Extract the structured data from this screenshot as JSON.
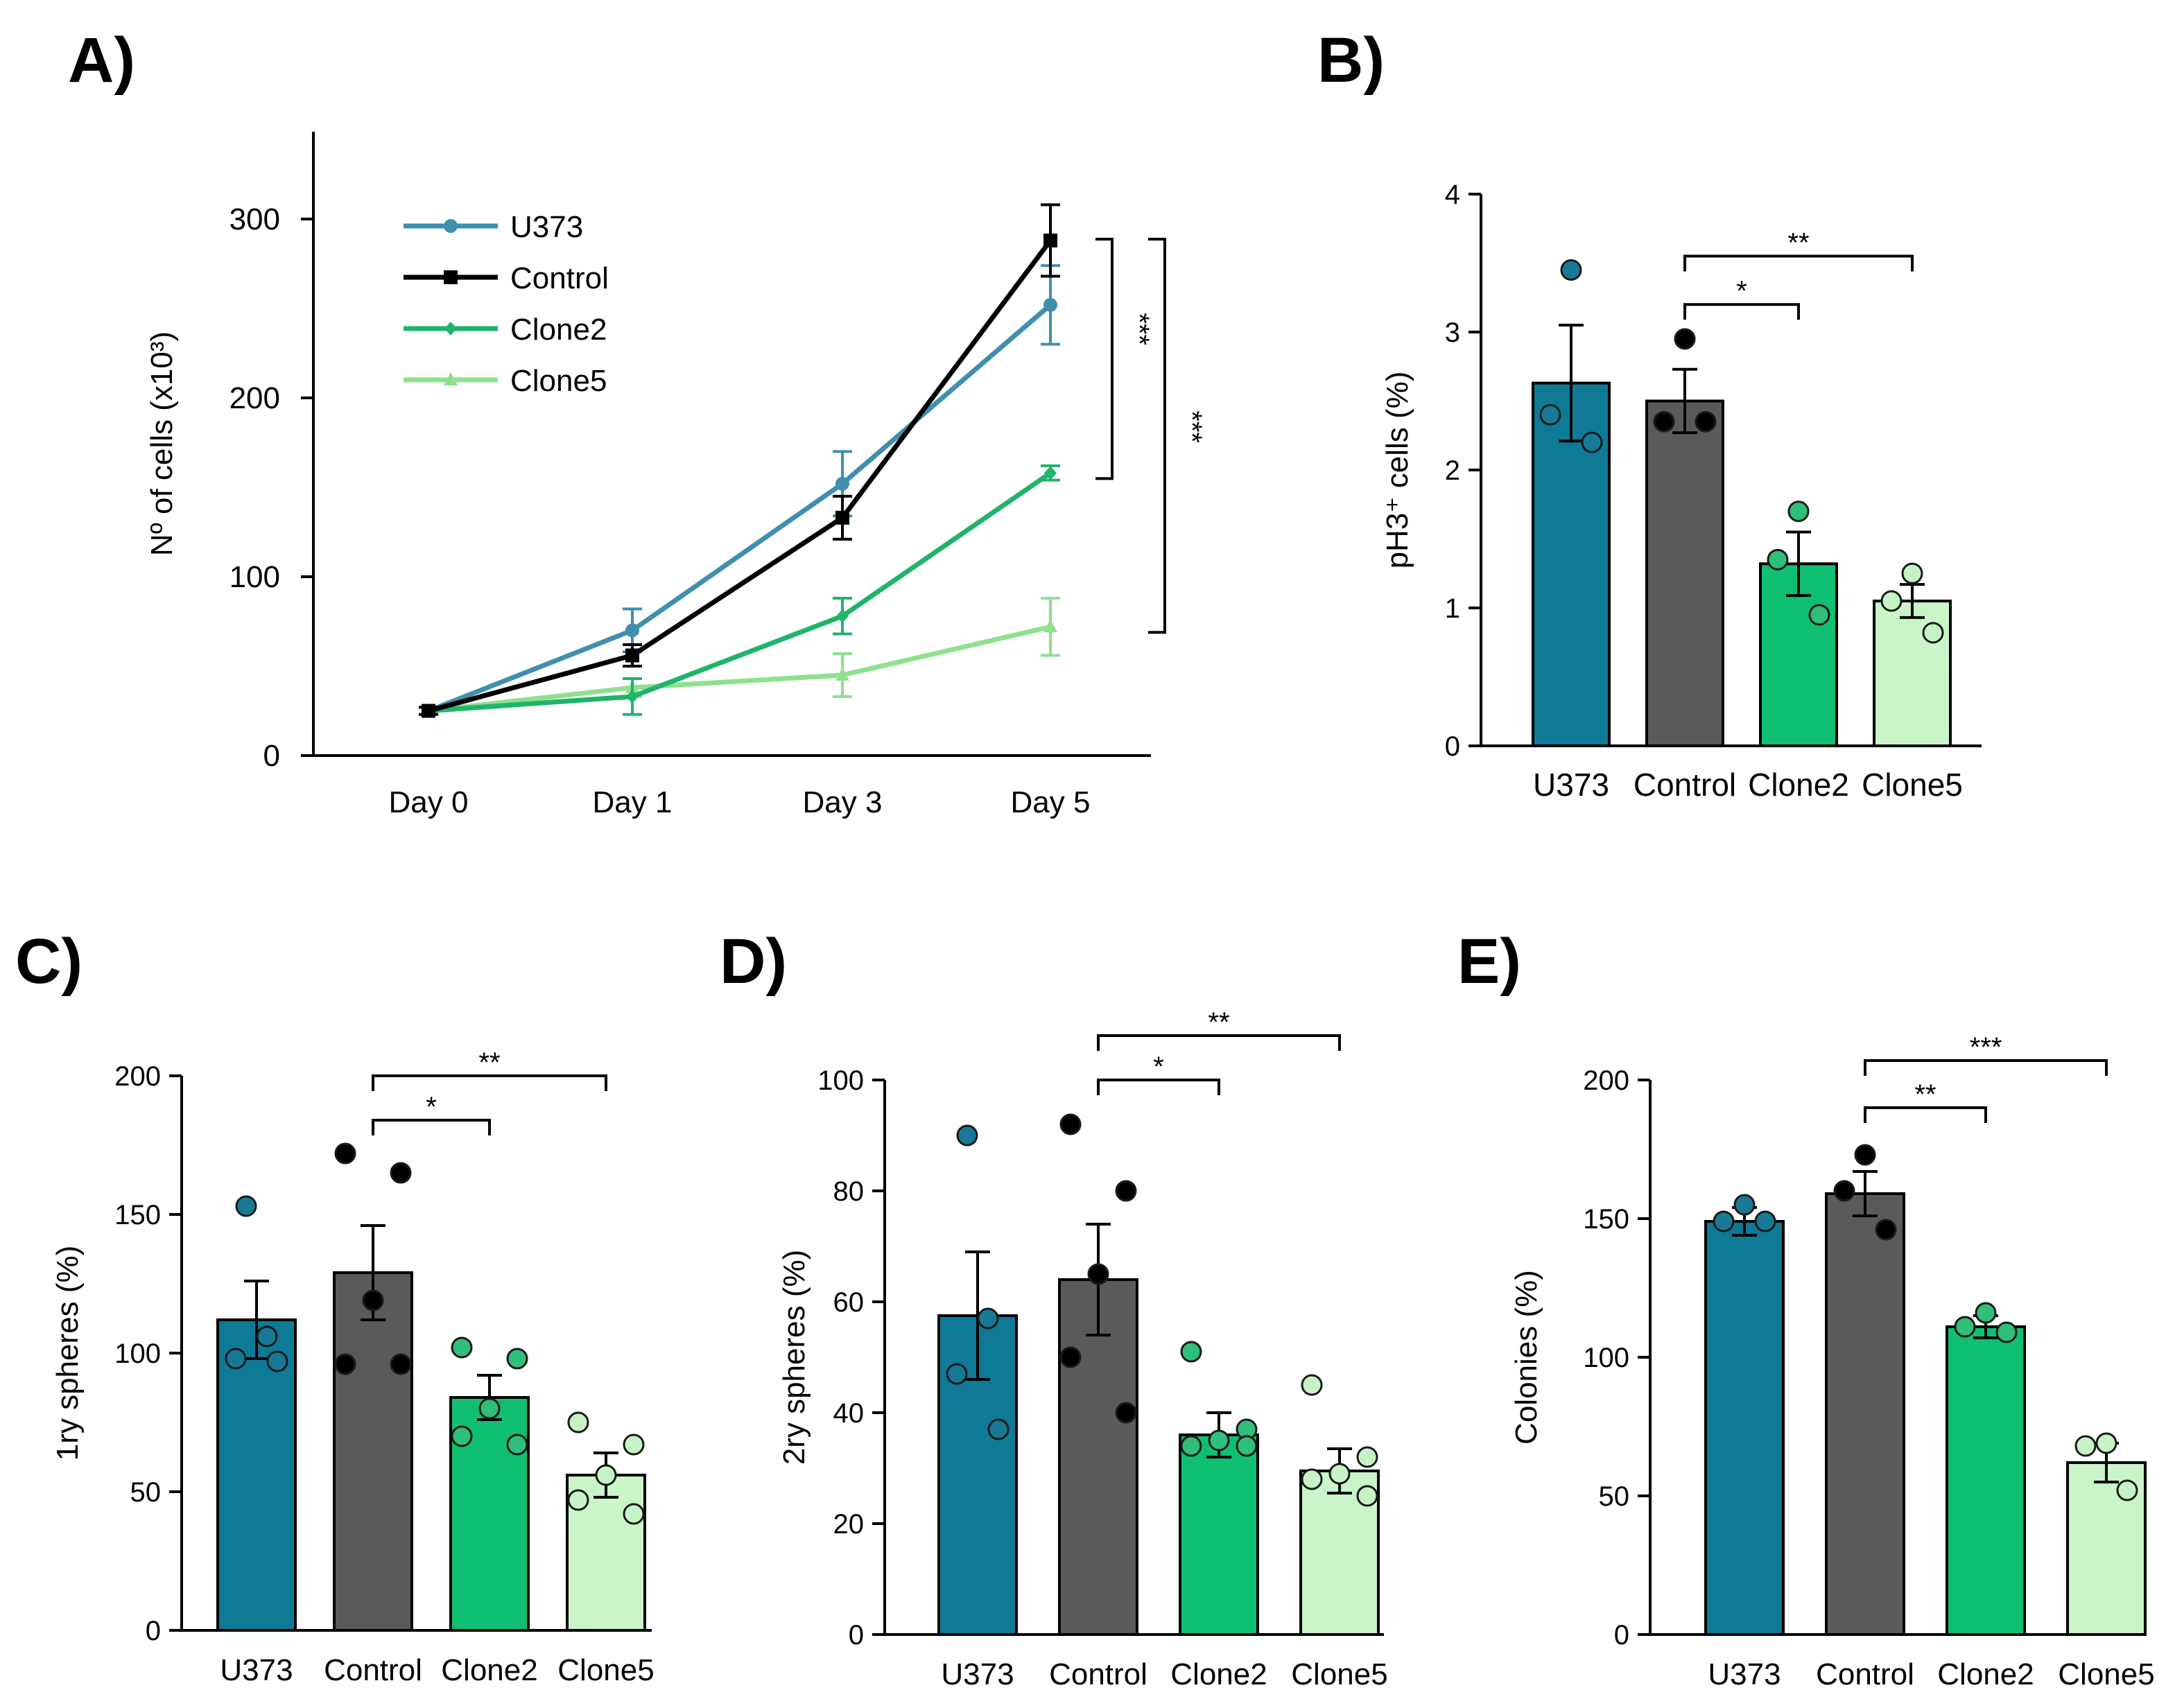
{
  "panel_labels": {
    "A": "A)",
    "B": "B)",
    "C": "C)",
    "D": "D)",
    "E": "E)"
  },
  "colors": {
    "U373": "#0e7a96",
    "Control": "#5a5a5a",
    "Clone2": "#0fbf72",
    "Clone5": "#c9f5c9",
    "U373_line": "#3f8fae",
    "Control_line": "#000000",
    "Clone2_line": "#1fb46a",
    "Clone5_line": "#8fe08f",
    "U373_dot": "#167a96",
    "Control_dot": "#000000",
    "Clone2_dot": "#2fbf7a",
    "Clone5_dot": "#c6f3c6"
  },
  "chart_data": [
    {
      "id": "A",
      "type": "line",
      "title": "",
      "xlabel": "",
      "ylabel": "Nº of cells (x10³)",
      "categories": [
        "Day 0",
        "Day 1",
        "Day 3",
        "Day 5"
      ],
      "ylim": [
        0,
        350
      ],
      "yticks": [
        0,
        100,
        200,
        300
      ],
      "series": [
        {
          "name": "U373",
          "values": [
            25,
            70,
            152,
            252
          ],
          "err": [
            2,
            12,
            18,
            22
          ]
        },
        {
          "name": "Control",
          "values": [
            25,
            56,
            133,
            288
          ],
          "err": [
            2,
            6,
            12,
            20
          ]
        },
        {
          "name": "Clone2",
          "values": [
            25,
            33,
            78,
            158
          ],
          "err": [
            2,
            10,
            10,
            4
          ]
        },
        {
          "name": "Clone5",
          "values": [
            25,
            38,
            45,
            72
          ],
          "err": [
            2,
            5,
            12,
            16
          ]
        }
      ],
      "significance": [
        {
          "label": "***",
          "from": "Control",
          "to": "Clone2"
        },
        {
          "label": "***",
          "from": "Control",
          "to": "Clone5"
        }
      ]
    },
    {
      "id": "B",
      "type": "bar",
      "ylabel": "pH3⁺ cells (%)",
      "categories": [
        "U373",
        "Control",
        "Clone2",
        "Clone5"
      ],
      "ylim": [
        0,
        4
      ],
      "yticks": [
        0,
        1,
        2,
        3,
        4
      ],
      "values": [
        2.63,
        2.5,
        1.32,
        1.05
      ],
      "err": [
        0.42,
        0.23,
        0.23,
        0.12
      ],
      "points": [
        [
          3.45,
          2.4,
          2.2
        ],
        [
          2.95,
          2.35,
          2.35
        ],
        [
          1.7,
          1.35,
          0.95
        ],
        [
          1.25,
          1.05,
          0.82
        ]
      ],
      "significance": [
        {
          "label": "*",
          "from": 1,
          "to": 2,
          "y": 3.2
        },
        {
          "label": "**",
          "from": 1,
          "to": 3,
          "y": 3.55
        }
      ]
    },
    {
      "id": "C",
      "type": "bar",
      "ylabel": "1ry spheres (%)",
      "categories": [
        "U373",
        "Control",
        "Clone2",
        "Clone5"
      ],
      "ylim": [
        0,
        200
      ],
      "yticks": [
        0,
        50,
        100,
        150,
        200
      ],
      "values": [
        112,
        129,
        84,
        56
      ],
      "err": [
        14,
        17,
        8,
        8
      ],
      "points": [
        [
          153,
          106,
          98,
          97
        ],
        [
          172,
          165,
          119,
          96,
          96
        ],
        [
          102,
          98,
          80,
          70,
          67
        ],
        [
          75,
          67,
          56,
          47,
          42
        ]
      ],
      "significance": [
        {
          "label": "*",
          "from": 1,
          "to": 2,
          "y": 184
        },
        {
          "label": "**",
          "from": 1,
          "to": 3,
          "y": 200
        }
      ]
    },
    {
      "id": "D",
      "type": "bar",
      "ylabel": "2ry spheres (%)",
      "categories": [
        "U373",
        "Control",
        "Clone2",
        "Clone5"
      ],
      "ylim": [
        0,
        100
      ],
      "yticks": [
        0,
        20,
        40,
        60,
        80,
        100
      ],
      "values": [
        57.5,
        64,
        36,
        29.5
      ],
      "err": [
        11.5,
        10,
        4,
        4
      ],
      "points": [
        [
          90,
          57,
          47,
          37
        ],
        [
          92,
          80,
          65,
          50,
          40
        ],
        [
          51,
          37,
          35,
          34,
          34
        ],
        [
          45,
          32,
          29,
          28,
          25
        ]
      ],
      "significance": [
        {
          "label": "*",
          "from": 1,
          "to": 2,
          "y": 100
        },
        {
          "label": "**",
          "from": 1,
          "to": 3,
          "y": 108
        }
      ]
    },
    {
      "id": "E",
      "type": "bar",
      "ylabel": "Colonies (%)",
      "categories": [
        "U373",
        "Control",
        "Clone2",
        "Clone5"
      ],
      "ylim": [
        0,
        200
      ],
      "yticks": [
        0,
        50,
        100,
        150,
        200
      ],
      "values": [
        149,
        159,
        111,
        62
      ],
      "err": [
        5,
        8,
        4,
        7
      ],
      "points": [
        [
          155,
          149,
          149
        ],
        [
          173,
          160,
          146
        ],
        [
          116,
          111,
          109
        ],
        [
          69,
          68,
          52
        ]
      ],
      "significance": [
        {
          "label": "**",
          "from": 1,
          "to": 2,
          "y": 190
        },
        {
          "label": "***",
          "from": 1,
          "to": 3,
          "y": 207
        }
      ]
    }
  ]
}
